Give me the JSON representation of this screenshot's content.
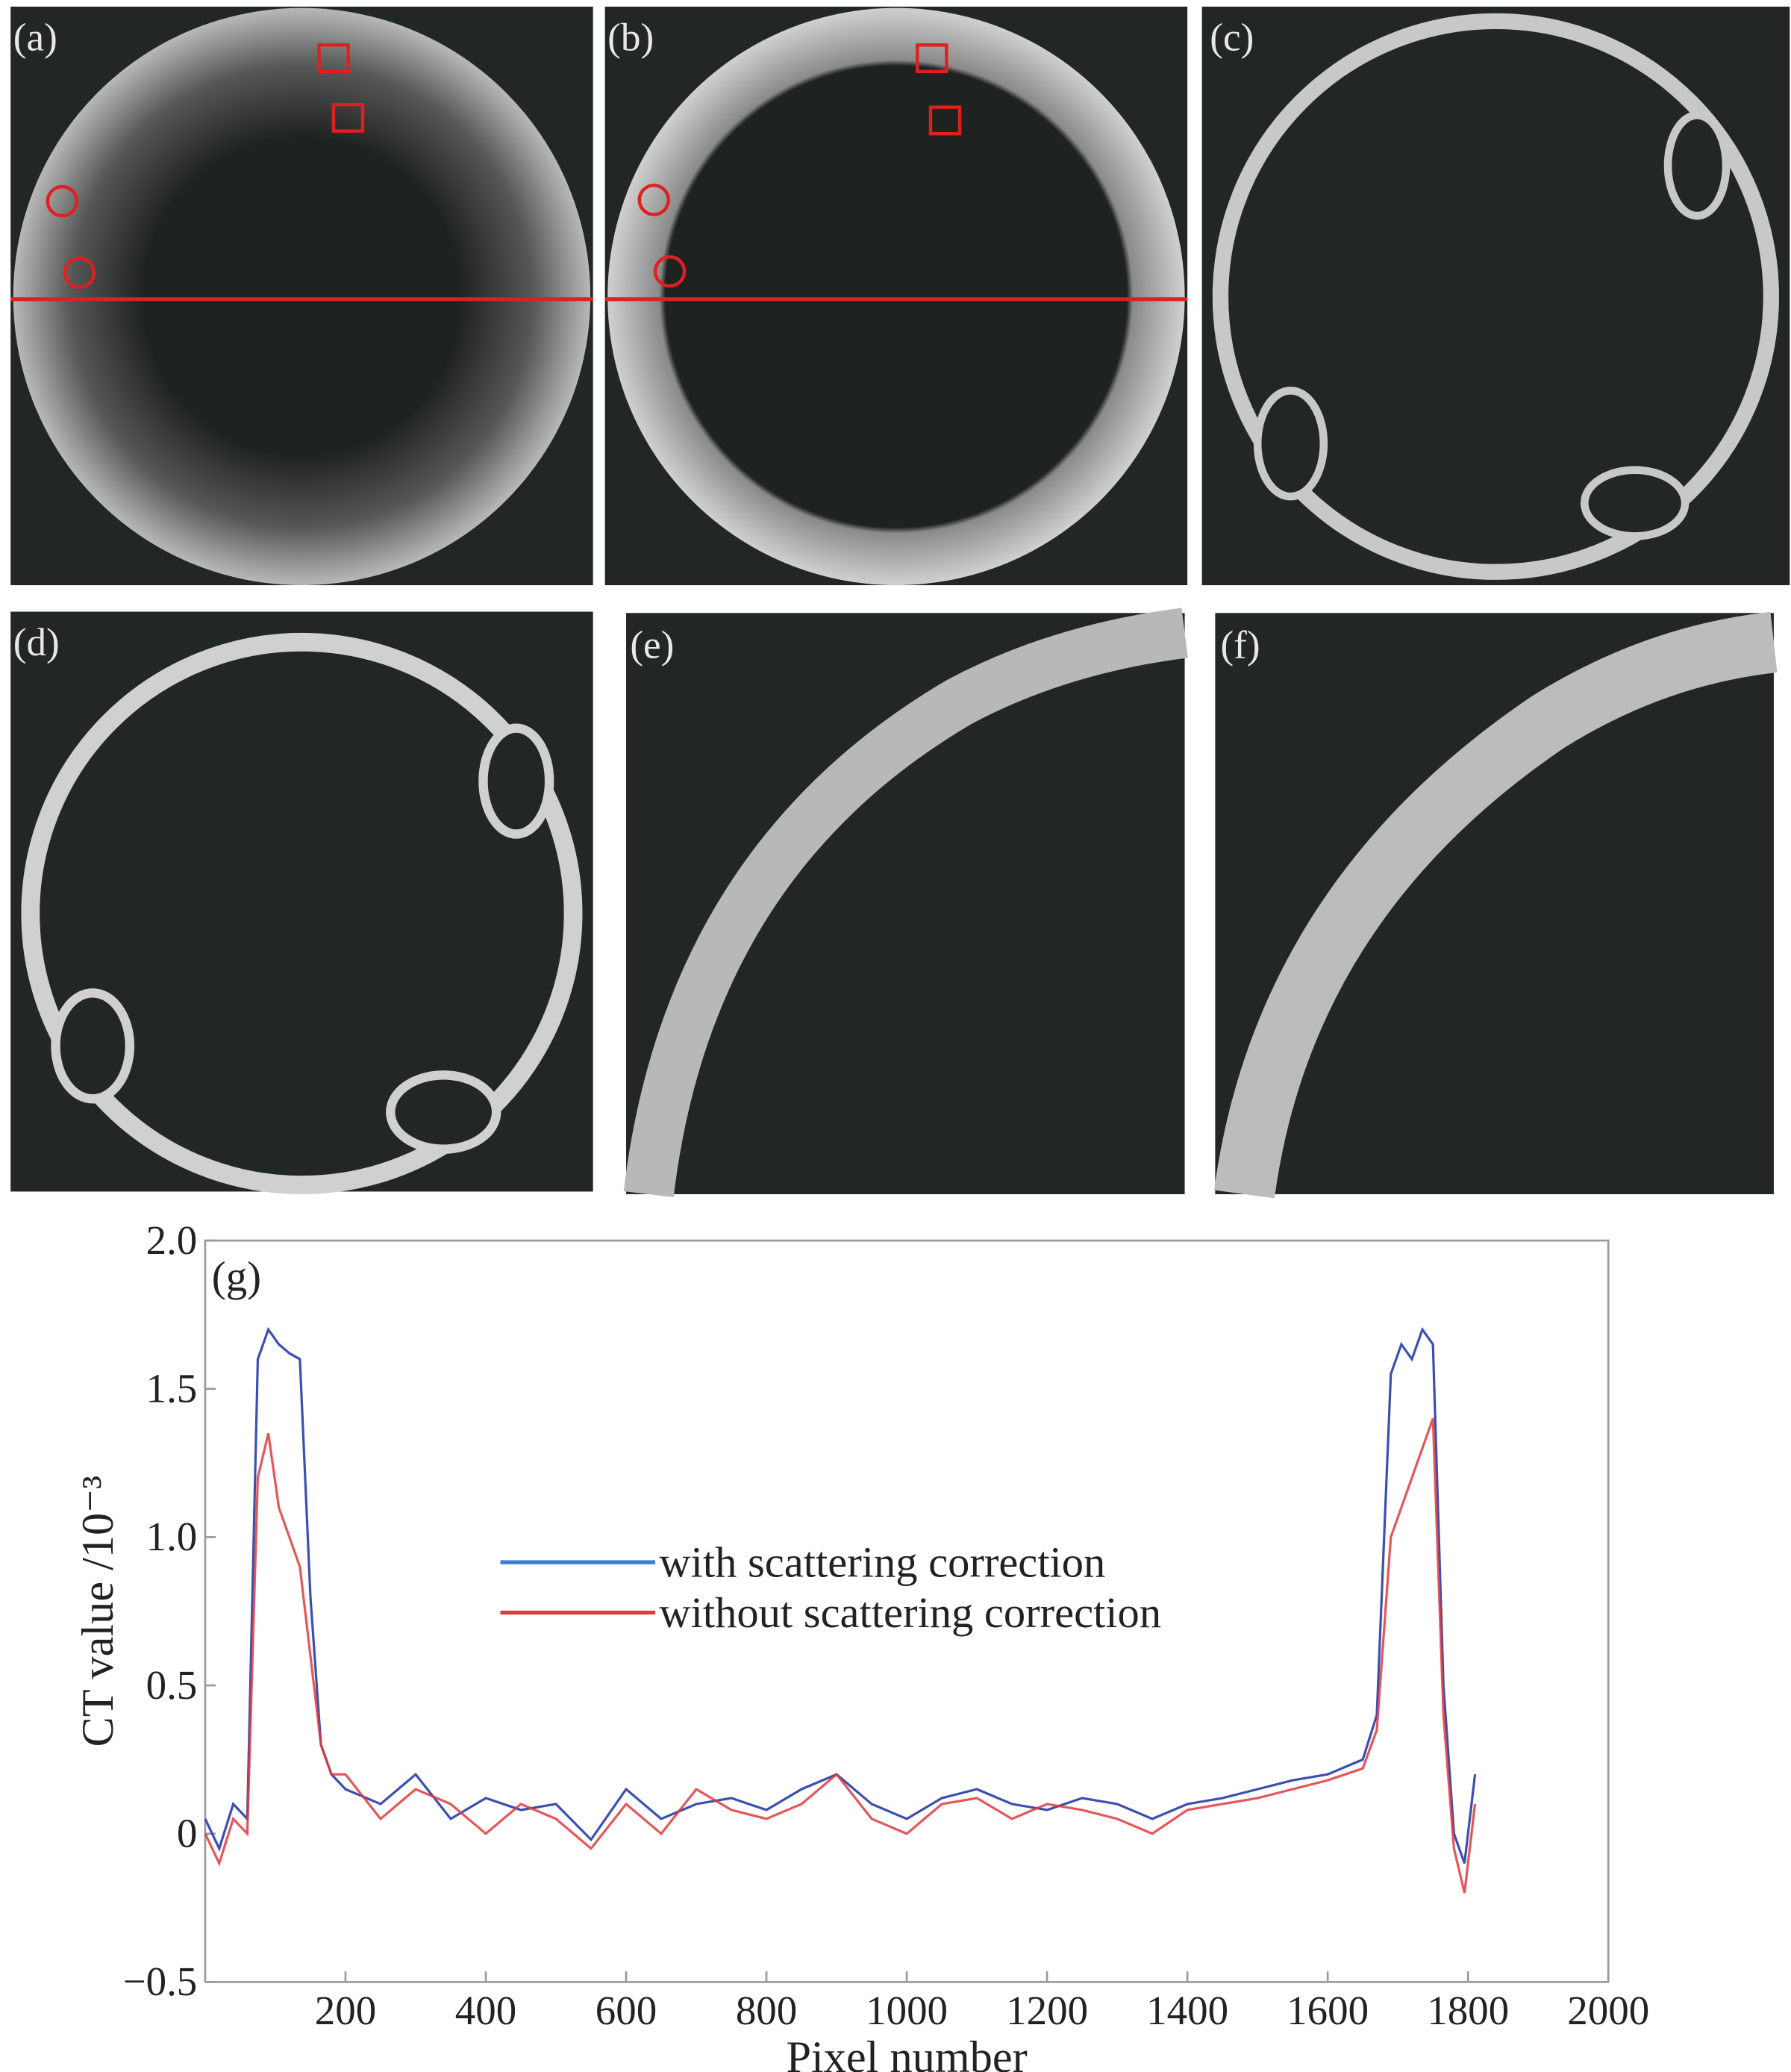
{
  "panels": [
    "(a)",
    "(b)",
    "(c)",
    "(d)",
    "(e)",
    "(f)"
  ],
  "chart_data": {
    "type": "line",
    "label": "(g)",
    "x_label": "Pixel number",
    "y_label": "CT value /10⁻³",
    "x": [
      0,
      20,
      40,
      60,
      75,
      90,
      105,
      120,
      135,
      150,
      165,
      180,
      200,
      250,
      300,
      350,
      400,
      450,
      500,
      550,
      600,
      650,
      700,
      750,
      800,
      850,
      900,
      950,
      1000,
      1050,
      1100,
      1150,
      1200,
      1250,
      1300,
      1350,
      1400,
      1450,
      1500,
      1550,
      1600,
      1650,
      1670,
      1690,
      1705,
      1720,
      1735,
      1750,
      1765,
      1780,
      1795,
      1810
    ],
    "series": [
      {
        "name": "with scattering correction",
        "color": "#3a4fb0",
        "values": [
          0.05,
          -0.05,
          0.1,
          0.05,
          1.6,
          1.7,
          1.65,
          1.62,
          1.6,
          0.8,
          0.3,
          0.2,
          0.15,
          0.1,
          0.2,
          0.05,
          0.12,
          0.08,
          0.1,
          -0.02,
          0.15,
          0.05,
          0.1,
          0.12,
          0.08,
          0.15,
          0.2,
          0.1,
          0.05,
          0.12,
          0.15,
          0.1,
          0.08,
          0.12,
          0.1,
          0.05,
          0.1,
          0.12,
          0.15,
          0.18,
          0.2,
          0.25,
          0.4,
          1.55,
          1.65,
          1.6,
          1.7,
          1.65,
          0.5,
          0.0,
          -0.1,
          0.2
        ]
      },
      {
        "name": "without scattering correction",
        "color": "#e0383c",
        "values": [
          0,
          -0.1,
          0.05,
          0,
          1.2,
          1.35,
          1.1,
          1.0,
          0.9,
          0.6,
          0.3,
          0.2,
          0.2,
          0.05,
          0.15,
          0.1,
          0.0,
          0.1,
          0.05,
          -0.05,
          0.1,
          0.0,
          0.15,
          0.08,
          0.05,
          0.1,
          0.2,
          0.05,
          0.0,
          0.1,
          0.12,
          0.05,
          0.1,
          0.08,
          0.05,
          0.0,
          0.08,
          0.1,
          0.12,
          0.15,
          0.18,
          0.22,
          0.35,
          1.0,
          1.1,
          1.2,
          1.3,
          1.4,
          0.4,
          -0.05,
          -0.2,
          0.1
        ]
      }
    ],
    "legend_colors": [
      "#3a80d0",
      "#e0383c"
    ],
    "xlim": [
      0,
      2000
    ],
    "xticks": [
      200,
      400,
      600,
      800,
      1000,
      1200,
      1400,
      1600,
      1800,
      2000
    ],
    "ylim": [
      -0.5,
      2
    ],
    "yticks": [
      {
        "value": -0.5,
        "label": "−0.5"
      },
      0,
      0.5,
      {
        "value": 1,
        "label": "1.0"
      },
      1.5,
      {
        "value": 2,
        "label": "2.0"
      }
    ]
  }
}
